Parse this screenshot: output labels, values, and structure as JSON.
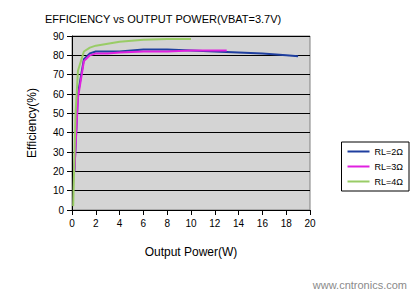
{
  "chart_data": {
    "type": "line",
    "title": "EFFICIENCY vs OUTPUT POWER(VBAT=3.7V)",
    "x_label": "Output Power(W)",
    "y_label": "Efficiency(%)",
    "annotations": [
      "www.cntronics.com"
    ],
    "xlim": [
      0,
      20
    ],
    "xticks": [
      0,
      2,
      4,
      6,
      8,
      10,
      12,
      14,
      16,
      18,
      20
    ],
    "ylim": [
      0,
      90
    ],
    "yticks": [
      0,
      10,
      20,
      30,
      40,
      50,
      60,
      70,
      80,
      90
    ],
    "grid": true,
    "legend": "right",
    "series": [
      {
        "name": "RL=2Ω",
        "color": "#1f3f9f",
        "x": [
          0.2,
          0.5,
          1,
          1.5,
          2,
          3,
          4,
          6,
          8,
          10,
          12,
          14,
          16,
          18,
          19
        ],
        "values": [
          20,
          60,
          78,
          81,
          82,
          82,
          82,
          83,
          83,
          82.5,
          82,
          81.5,
          81,
          80,
          79.5
        ]
      },
      {
        "name": "RL=3Ω",
        "color": "#e020e0",
        "x": [
          0.2,
          0.5,
          1,
          1.5,
          2,
          3,
          4,
          6,
          8,
          10,
          12,
          13
        ],
        "values": [
          20,
          58,
          77,
          80,
          81,
          81,
          81.5,
          82,
          82,
          82.5,
          82.5,
          82.5
        ]
      },
      {
        "name": "RL=4Ω",
        "color": "#99cc66",
        "x": [
          0.1,
          0.3,
          0.5,
          1,
          1.5,
          2,
          3,
          4,
          6,
          8,
          10
        ],
        "values": [
          2,
          50,
          72,
          82,
          84,
          85,
          86,
          87,
          88,
          88.5,
          88.5
        ]
      }
    ]
  }
}
